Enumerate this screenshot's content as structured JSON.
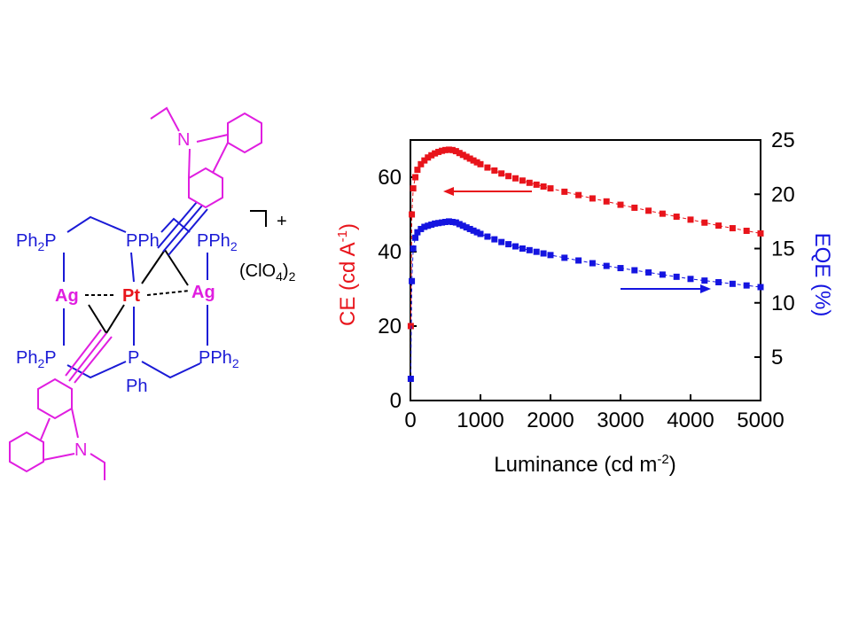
{
  "structure": {
    "ph2p_top_left": [
      "Ph",
      "2",
      "P"
    ],
    "pph_top_middle": "PPh",
    "pph2_top_right": [
      "PPh",
      "2"
    ],
    "charge": "+",
    "counterion": [
      "(ClO",
      "4",
      ")",
      "2"
    ],
    "ag_left": "Ag",
    "pt": "Pt",
    "ag_right": "Ag",
    "ph2p_bottom_left": [
      "Ph",
      "2",
      "P"
    ],
    "p_bottom_middle": "P",
    "ph_bottom_middle": "Ph",
    "pph2_bottom_right": [
      "PPh",
      "2"
    ],
    "n_top": "N",
    "n_bottom": "N"
  },
  "chart_data": {
    "type": "line",
    "x_label": [
      "Luminance (cd m",
      "-2",
      ")"
    ],
    "y_label": [
      "CE (cd A",
      "-1",
      ")"
    ],
    "y2_label": "EQE (%)",
    "x": [
      5,
      20,
      40,
      70,
      100,
      150,
      200,
      250,
      300,
      350,
      400,
      450,
      500,
      550,
      600,
      650,
      700,
      750,
      800,
      850,
      900,
      950,
      1000,
      1100,
      1200,
      1300,
      1400,
      1500,
      1600,
      1700,
      1800,
      1900,
      2000,
      2200,
      2400,
      2600,
      2800,
      3000,
      3200,
      3400,
      3600,
      3800,
      4000,
      4200,
      4400,
      4600,
      4800,
      5000
    ],
    "series": [
      {
        "name": "CE",
        "color": "#e8141b",
        "axis": "y",
        "values": [
          20,
          50,
          57,
          60,
          62,
          63.5,
          64.5,
          65.3,
          65.9,
          66.4,
          66.8,
          67.1,
          67.3,
          67.4,
          67.3,
          67,
          66.5,
          66,
          65.5,
          65,
          64.5,
          64,
          63.5,
          62.6,
          61.8,
          61,
          60.3,
          59.7,
          59.1,
          58.5,
          58,
          57.5,
          57,
          56.1,
          55.2,
          54.3,
          53.5,
          52.6,
          51.8,
          51,
          50.2,
          49.4,
          48.6,
          47.8,
          47,
          46.3,
          45.6,
          44.9
        ]
      },
      {
        "name": "EQE",
        "color": "#1414e0",
        "axis": "y2",
        "values": [
          3,
          12,
          15,
          16,
          16.5,
          16.8,
          17,
          17.1,
          17.2,
          17.3,
          17.35,
          17.4,
          17.45,
          17.5,
          17.45,
          17.4,
          17.25,
          17.1,
          16.95,
          16.8,
          16.65,
          16.5,
          16.35,
          16.1,
          15.85,
          15.6,
          15.4,
          15.2,
          15.0,
          14.85,
          14.7,
          14.55,
          14.4,
          14.15,
          13.9,
          13.65,
          13.4,
          13.2,
          13.0,
          12.8,
          12.6,
          12.4,
          12.2,
          12.05,
          11.9,
          11.75,
          11.6,
          11.45
        ]
      }
    ],
    "xlim": [
      0,
      5000
    ],
    "xticks": [
      0,
      1000,
      2000,
      3000,
      4000,
      5000
    ],
    "ylim": [
      0,
      70
    ],
    "yticks": [
      0,
      20,
      40,
      60
    ],
    "y2lim": [
      1,
      25
    ],
    "y2ticks": [
      5,
      10,
      15,
      20,
      25
    ]
  }
}
